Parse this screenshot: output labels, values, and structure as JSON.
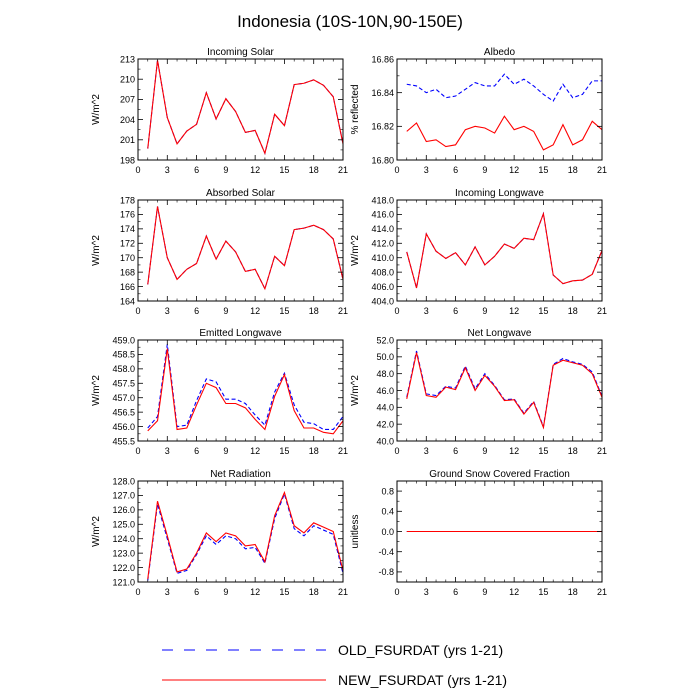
{
  "title": "Indonesia (10S-10N,90-150E)",
  "legend": {
    "placement": "bottom-center",
    "items": [
      {
        "label": "OLD_FSURDAT (yrs 1-21)",
        "color": "#0000ff",
        "dash": "dashed"
      },
      {
        "label": "NEW_FSURDAT (yrs 1-21)",
        "color": "#ff0000",
        "dash": "solid"
      }
    ]
  },
  "chart_data": [
    {
      "type": "line",
      "title": "Incoming Solar",
      "ylabel": "W/m^2",
      "xlim": [
        0,
        21
      ],
      "ylim": [
        198,
        213
      ],
      "xticks": [
        0,
        3,
        6,
        9,
        12,
        15,
        18,
        21
      ],
      "yticks": [
        198,
        201,
        204,
        207,
        210,
        213
      ],
      "ytick_labels": [
        "198",
        "201",
        "204",
        "207",
        "210",
        "213"
      ],
      "x": [
        1,
        2,
        3,
        4,
        5,
        6,
        7,
        8,
        9,
        10,
        11,
        12,
        13,
        14,
        15,
        16,
        17,
        18,
        19,
        20,
        21
      ],
      "series": [
        {
          "name": "OLD_FSURDAT (yrs 1-21)",
          "color": "#0000ff",
          "dash": "dashed",
          "values": [
            199.7,
            212.8,
            204.3,
            200.4,
            202.3,
            203.3,
            208.0,
            204.1,
            207.1,
            205.2,
            202.1,
            202.4,
            199.0,
            204.8,
            203.1,
            209.2,
            209.4,
            209.9,
            209.1,
            207.4,
            200.4
          ]
        },
        {
          "name": "NEW_FSURDAT (yrs 1-21)",
          "color": "#ff0000",
          "dash": "solid",
          "values": [
            199.7,
            212.8,
            204.3,
            200.4,
            202.3,
            203.3,
            208.0,
            204.1,
            207.1,
            205.2,
            202.1,
            202.4,
            199.0,
            204.8,
            203.1,
            209.2,
            209.4,
            209.9,
            209.1,
            207.4,
            200.4
          ]
        }
      ]
    },
    {
      "type": "line",
      "title": "Albedo",
      "ylabel": "% reflected",
      "xlim": [
        0,
        21
      ],
      "ylim": [
        16.8,
        16.86
      ],
      "xticks": [
        0,
        3,
        6,
        9,
        12,
        15,
        18,
        21
      ],
      "yticks": [
        16.8,
        16.82,
        16.84,
        16.86
      ],
      "ytick_labels": [
        "16.80",
        "16.82",
        "16.84",
        "16.86"
      ],
      "x": [
        1,
        2,
        3,
        4,
        5,
        6,
        7,
        8,
        9,
        10,
        11,
        12,
        13,
        14,
        15,
        16,
        17,
        18,
        19,
        20,
        21
      ],
      "series": [
        {
          "name": "OLD_FSURDAT (yrs 1-21)",
          "color": "#0000ff",
          "dash": "dashed",
          "values": [
            16.845,
            16.844,
            16.84,
            16.842,
            16.837,
            16.838,
            16.842,
            16.846,
            16.844,
            16.844,
            16.851,
            16.845,
            16.848,
            16.844,
            16.839,
            16.835,
            16.845,
            16.837,
            16.839,
            16.847,
            16.847
          ]
        },
        {
          "name": "NEW_FSURDAT (yrs 1-21)",
          "color": "#ff0000",
          "dash": "solid",
          "values": [
            16.817,
            16.822,
            16.811,
            16.812,
            16.808,
            16.809,
            16.818,
            16.82,
            16.819,
            16.816,
            16.826,
            16.818,
            16.82,
            16.817,
            16.806,
            16.809,
            16.821,
            16.809,
            16.812,
            16.823,
            16.818
          ]
        }
      ]
    },
    {
      "type": "line",
      "title": "Absorbed Solar",
      "ylabel": "W/m^2",
      "xlim": [
        0,
        21
      ],
      "ylim": [
        164,
        178
      ],
      "xticks": [
        0,
        3,
        6,
        9,
        12,
        15,
        18,
        21
      ],
      "yticks": [
        164,
        166,
        168,
        170,
        172,
        174,
        176,
        178
      ],
      "ytick_labels": [
        "164",
        "166",
        "168",
        "170",
        "172",
        "174",
        "176",
        "178"
      ],
      "x": [
        1,
        2,
        3,
        4,
        5,
        6,
        7,
        8,
        9,
        10,
        11,
        12,
        13,
        14,
        15,
        16,
        17,
        18,
        19,
        20,
        21
      ],
      "series": [
        {
          "name": "OLD_FSURDAT (yrs 1-21)",
          "color": "#0000ff",
          "dash": "dashed",
          "values": [
            166.3,
            177.1,
            170.0,
            167.0,
            168.4,
            169.2,
            173.0,
            169.8,
            172.3,
            170.8,
            168.1,
            168.4,
            165.7,
            170.2,
            168.9,
            173.9,
            174.1,
            174.5,
            173.9,
            172.6,
            167.0
          ]
        },
        {
          "name": "NEW_FSURDAT (yrs 1-21)",
          "color": "#ff0000",
          "dash": "solid",
          "values": [
            166.3,
            177.1,
            170.0,
            167.0,
            168.4,
            169.2,
            173.0,
            169.8,
            172.3,
            170.8,
            168.1,
            168.4,
            165.7,
            170.2,
            168.9,
            173.9,
            174.1,
            174.5,
            173.9,
            172.6,
            167.0
          ]
        }
      ]
    },
    {
      "type": "line",
      "title": "Incoming Longwave",
      "ylabel": "W/m^2",
      "xlim": [
        0,
        21
      ],
      "ylim": [
        404,
        418
      ],
      "xticks": [
        0,
        3,
        6,
        9,
        12,
        15,
        18,
        21
      ],
      "yticks": [
        404,
        406,
        408,
        410,
        412,
        414,
        416,
        418
      ],
      "ytick_labels": [
        "404.0",
        "406.0",
        "408.0",
        "410.0",
        "412.0",
        "414.0",
        "416.0",
        "418.0"
      ],
      "x": [
        1,
        2,
        3,
        4,
        5,
        6,
        7,
        8,
        9,
        10,
        11,
        12,
        13,
        14,
        15,
        16,
        17,
        18,
        19,
        20,
        21
      ],
      "series": [
        {
          "name": "OLD_FSURDAT (yrs 1-21)",
          "color": "#0000ff",
          "dash": "dashed",
          "values": [
            410.8,
            405.8,
            413.3,
            410.9,
            409.9,
            410.7,
            409.0,
            411.5,
            409.0,
            410.2,
            411.9,
            411.3,
            412.7,
            412.5,
            416.1,
            407.6,
            406.4,
            406.8,
            406.9,
            407.7,
            411.0
          ]
        },
        {
          "name": "NEW_FSURDAT (yrs 1-21)",
          "color": "#ff0000",
          "dash": "solid",
          "values": [
            410.8,
            405.8,
            413.3,
            410.9,
            409.9,
            410.7,
            409.0,
            411.5,
            409.0,
            410.2,
            411.9,
            411.3,
            412.7,
            412.5,
            416.1,
            407.6,
            406.4,
            406.8,
            406.9,
            407.7,
            411.0
          ]
        }
      ]
    },
    {
      "type": "line",
      "title": "Emitted Longwave",
      "ylabel": "W/m^2",
      "xlim": [
        0,
        21
      ],
      "ylim": [
        455.5,
        459.0
      ],
      "xticks": [
        0,
        3,
        6,
        9,
        12,
        15,
        18,
        21
      ],
      "yticks": [
        455.5,
        456.0,
        456.5,
        457.0,
        457.5,
        458.0,
        458.5,
        459.0
      ],
      "ytick_labels": [
        "455.5",
        "456.0",
        "456.5",
        "457.0",
        "457.5",
        "458.0",
        "458.5",
        "459.0"
      ],
      "x": [
        1,
        2,
        3,
        4,
        5,
        6,
        7,
        8,
        9,
        10,
        11,
        12,
        13,
        14,
        15,
        16,
        17,
        18,
        19,
        20,
        21
      ],
      "series": [
        {
          "name": "OLD_FSURDAT (yrs 1-21)",
          "color": "#0000ff",
          "dash": "dashed",
          "values": [
            455.95,
            456.35,
            458.85,
            456.0,
            456.05,
            456.9,
            457.65,
            457.55,
            456.95,
            456.95,
            456.8,
            456.4,
            456.05,
            457.2,
            457.85,
            456.75,
            456.15,
            456.1,
            455.9,
            455.9,
            456.35
          ]
        },
        {
          "name": "NEW_FSURDAT (yrs 1-21)",
          "color": "#ff0000",
          "dash": "solid",
          "values": [
            455.85,
            456.2,
            458.7,
            455.9,
            455.95,
            456.75,
            457.5,
            457.35,
            456.8,
            456.8,
            456.65,
            456.25,
            455.9,
            457.05,
            457.8,
            456.55,
            455.95,
            455.95,
            455.8,
            455.75,
            456.2
          ]
        }
      ]
    },
    {
      "type": "line",
      "title": "Net Longwave",
      "ylabel": "W/m^2",
      "xlim": [
        0,
        21
      ],
      "ylim": [
        40,
        52
      ],
      "xticks": [
        0,
        3,
        6,
        9,
        12,
        15,
        18,
        21
      ],
      "yticks": [
        40,
        42,
        44,
        46,
        48,
        50,
        52
      ],
      "ytick_labels": [
        "40.0",
        "42.0",
        "44.0",
        "46.0",
        "48.0",
        "50.0",
        "52.0"
      ],
      "x": [
        1,
        2,
        3,
        4,
        5,
        6,
        7,
        8,
        9,
        10,
        11,
        12,
        13,
        14,
        15,
        16,
        17,
        18,
        19,
        20,
        21
      ],
      "series": [
        {
          "name": "OLD_FSURDAT (yrs 1-21)",
          "color": "#0000ff",
          "dash": "dashed",
          "values": [
            45.2,
            50.7,
            45.6,
            45.4,
            46.5,
            46.3,
            48.9,
            46.2,
            48.0,
            46.6,
            44.9,
            45.0,
            43.3,
            44.7,
            41.7,
            49.1,
            49.8,
            49.4,
            49.1,
            48.2,
            45.3
          ]
        },
        {
          "name": "NEW_FSURDAT (yrs 1-21)",
          "color": "#ff0000",
          "dash": "solid",
          "values": [
            45.0,
            50.5,
            45.4,
            45.2,
            46.4,
            46.1,
            48.7,
            46.0,
            47.8,
            46.5,
            44.8,
            44.9,
            43.2,
            44.6,
            41.6,
            49.0,
            49.6,
            49.3,
            49.0,
            48.0,
            45.2
          ]
        }
      ]
    },
    {
      "type": "line",
      "title": "Net Radiation",
      "ylabel": "W/m^2",
      "xlim": [
        0,
        21
      ],
      "ylim": [
        121,
        128
      ],
      "xticks": [
        0,
        3,
        6,
        9,
        12,
        15,
        18,
        21
      ],
      "yticks": [
        121,
        122,
        123,
        124,
        125,
        126,
        127,
        128
      ],
      "ytick_labels": [
        "121.0",
        "122.0",
        "123.0",
        "124.0",
        "125.0",
        "126.0",
        "127.0",
        "128.0"
      ],
      "x": [
        1,
        2,
        3,
        4,
        5,
        6,
        7,
        8,
        9,
        10,
        11,
        12,
        13,
        14,
        15,
        16,
        17,
        18,
        19,
        20,
        21
      ],
      "series": [
        {
          "name": "OLD_FSURDAT (yrs 1-21)",
          "color": "#0000ff",
          "dash": "dashed",
          "values": [
            121.1,
            126.4,
            124.0,
            121.6,
            121.8,
            122.9,
            124.2,
            123.6,
            124.2,
            124.0,
            123.3,
            123.4,
            122.3,
            125.4,
            127.1,
            124.7,
            124.2,
            124.9,
            124.6,
            124.3,
            121.6
          ]
        },
        {
          "name": "NEW_FSURDAT (yrs 1-21)",
          "color": "#ff0000",
          "dash": "solid",
          "values": [
            121.2,
            126.6,
            124.2,
            121.7,
            121.9,
            123.0,
            124.4,
            123.8,
            124.4,
            124.2,
            123.5,
            123.6,
            122.4,
            125.6,
            127.2,
            124.9,
            124.4,
            125.1,
            124.8,
            124.5,
            121.8
          ]
        }
      ]
    },
    {
      "type": "line",
      "title": "Ground Snow Covered Fraction",
      "ylabel": "unitless",
      "xlim": [
        0,
        21
      ],
      "ylim": [
        -1.0,
        1.0
      ],
      "xticks": [
        0,
        3,
        6,
        9,
        12,
        15,
        18,
        21
      ],
      "yticks": [
        -0.8,
        -0.4,
        0.0,
        0.4,
        0.8
      ],
      "ytick_labels": [
        "-0.8",
        "-0.4",
        "0.0",
        "0.4",
        "0.8"
      ],
      "x": [
        1,
        2,
        3,
        4,
        5,
        6,
        7,
        8,
        9,
        10,
        11,
        12,
        13,
        14,
        15,
        16,
        17,
        18,
        19,
        20,
        21
      ],
      "series": [
        {
          "name": "OLD_FSURDAT (yrs 1-21)",
          "color": "#0000ff",
          "dash": "dashed",
          "values": [
            0,
            0,
            0,
            0,
            0,
            0,
            0,
            0,
            0,
            0,
            0,
            0,
            0,
            0,
            0,
            0,
            0,
            0,
            0,
            0,
            0
          ]
        },
        {
          "name": "NEW_FSURDAT (yrs 1-21)",
          "color": "#ff0000",
          "dash": "solid",
          "values": [
            0,
            0,
            0,
            0,
            0,
            0,
            0,
            0,
            0,
            0,
            0,
            0,
            0,
            0,
            0,
            0,
            0,
            0,
            0,
            0,
            0
          ]
        }
      ]
    }
  ]
}
